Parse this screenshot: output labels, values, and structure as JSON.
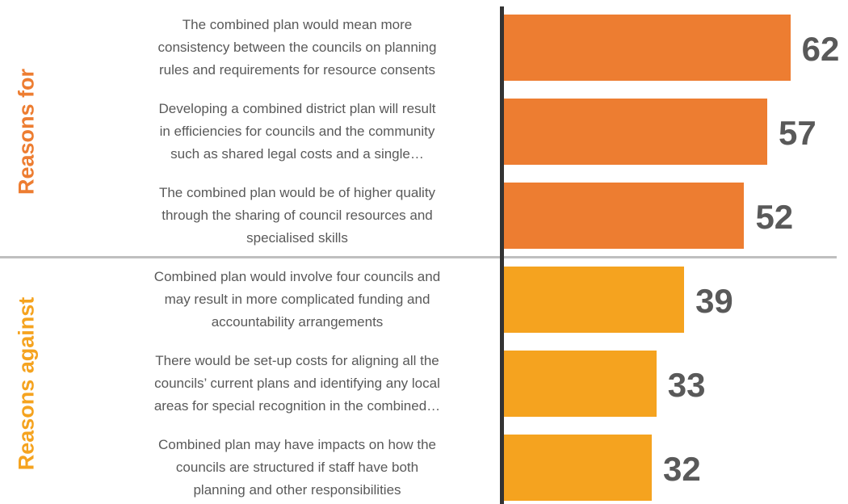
{
  "chart_data": {
    "type": "bar",
    "orientation": "horizontal",
    "groups": [
      {
        "name": "Reasons for",
        "color": "#ED7D31",
        "categories": [
          [
            "The combined plan would mean more",
            "consistency between the councils on planning",
            "rules and requirements for resource consents"
          ],
          [
            "Developing a combined district plan will result",
            "in efficiencies for councils and the community",
            "such as shared legal costs and a single…"
          ],
          [
            "The combined plan would be of higher quality",
            "through the sharing of council resources and",
            "specialised skills"
          ]
        ],
        "values": [
          62,
          57,
          52
        ]
      },
      {
        "name": "Reasons against",
        "color": "#F5A31F",
        "categories": [
          [
            "Combined plan would involve four councils and",
            "may result in more complicated funding and",
            "accountability arrangements"
          ],
          [
            "There would be set-up costs for aligning all the",
            "councils’ current plans and identifying any local",
            "areas for special recognition in the combined…"
          ],
          [
            "Combined plan may have impacts on how the",
            "councils are structured if staff have both",
            "planning and other responsibilities"
          ]
        ],
        "values": [
          39,
          33,
          32
        ]
      }
    ]
  }
}
